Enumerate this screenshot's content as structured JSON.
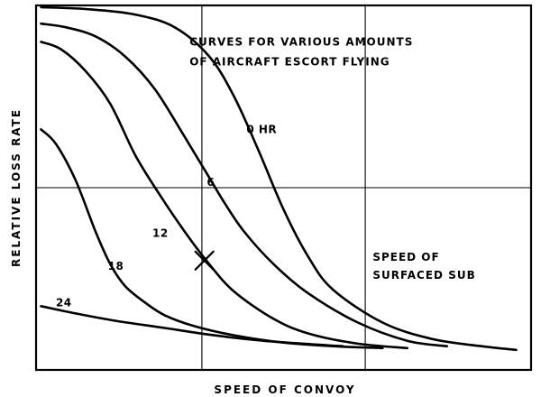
{
  "chart_data": {
    "type": "line",
    "title": "",
    "xlabel": "SPEED OF CONVOY",
    "ylabel": "RELATIVE LOSS RATE",
    "xlim": [
      0,
      100
    ],
    "ylim": [
      0,
      100
    ],
    "grid": true,
    "gridlines": {
      "x": [
        33.5,
        66.5
      ],
      "y": [
        50
      ]
    },
    "annotations": [
      {
        "text": "CURVES FOR VARIOUS AMOUNTS",
        "x": 31,
        "y": 89
      },
      {
        "text": "OF AIRCRAFT ESCORT FLYING",
        "x": 31,
        "y": 83.5
      },
      {
        "text": "SPEED OF",
        "x": 68,
        "y": 30
      },
      {
        "text": "SURFACED SUB",
        "x": 68,
        "y": 25
      }
    ],
    "marker": {
      "shape": "x",
      "x": 34,
      "y": 30
    },
    "series": [
      {
        "name": "0 HR",
        "label_at": [
          42.5,
          65
        ],
        "x": [
          1,
          10,
          20,
          28,
          35,
          40,
          45,
          50,
          55,
          60,
          70,
          80,
          90,
          97
        ],
        "y": [
          99.5,
          99,
          97.5,
          94,
          86,
          75,
          60,
          44,
          31,
          22,
          13,
          8.5,
          6.5,
          5.5
        ]
      },
      {
        "name": "6",
        "label_at": [
          34.5,
          50.5
        ],
        "x": [
          1,
          6,
          12,
          18,
          24,
          30,
          34,
          38,
          42,
          48,
          55,
          65,
          75,
          83
        ],
        "y": [
          95,
          94,
          91.5,
          86,
          77,
          64,
          55,
          46,
          38,
          29,
          21,
          13,
          8,
          6.5
        ]
      },
      {
        "name": "12",
        "label_at": [
          23.5,
          36.5
        ],
        "x": [
          1,
          5,
          10,
          15,
          20,
          25,
          30,
          35,
          40,
          48,
          55,
          65,
          75
        ],
        "y": [
          90,
          88,
          82,
          73,
          59,
          48,
          38,
          29,
          21.5,
          14,
          10,
          7.2,
          6
        ]
      },
      {
        "name": "18",
        "label_at": [
          14.5,
          27.5
        ],
        "x": [
          1,
          4,
          8,
          12,
          15,
          18,
          22,
          26,
          32,
          40,
          50,
          60,
          70
        ],
        "y": [
          66,
          62,
          52,
          38,
          29,
          23,
          18.5,
          15,
          12,
          9.5,
          7.5,
          6.5,
          6
        ]
      },
      {
        "name": "24",
        "label_at": [
          4,
          17.5
        ],
        "x": [
          1,
          8,
          16,
          26,
          36,
          46,
          56,
          62
        ],
        "y": [
          17.5,
          15.5,
          13.5,
          11.5,
          9.5,
          8,
          7,
          6.5
        ]
      }
    ]
  }
}
